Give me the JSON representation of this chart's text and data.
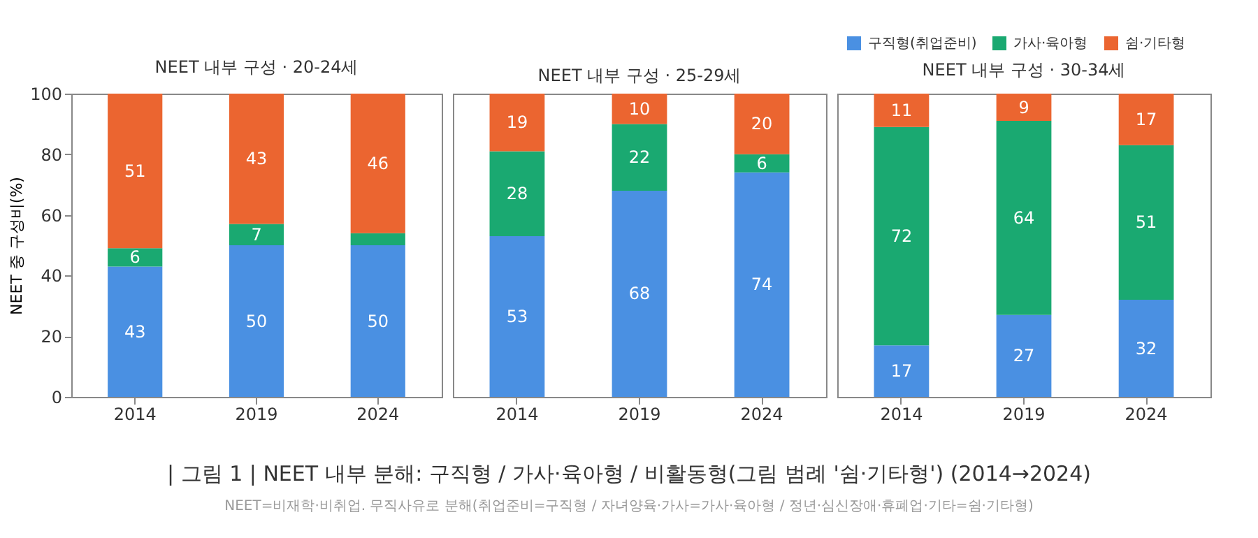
{
  "chart_data": [
    {
      "type": "bar",
      "stacked": true,
      "title": "NEET 내부 구성 · 20-24세",
      "ylabel": "NEET 중 구성비(%)",
      "categories": [
        "2014",
        "2019",
        "2024"
      ],
      "ylim": [
        0,
        100
      ],
      "yticks": [
        0,
        20,
        40,
        60,
        80,
        100
      ],
      "series": [
        {
          "color": "#4a90e2",
          "values": [
            43,
            50,
            50
          ],
          "value_labels": [
            "43",
            "50",
            "50"
          ]
        },
        {
          "color": "#1aa971",
          "values": [
            6,
            7,
            4
          ],
          "value_labels": [
            "6",
            "7",
            null
          ]
        },
        {
          "color": "#eb6530",
          "values": [
            51,
            43,
            46
          ],
          "value_labels": [
            "51",
            "43",
            "46"
          ]
        }
      ],
      "annotations": [
        "| 그림 1 |  NEET 내부 분해: 구직형 / 가사·육아형 / 비활동형(그림 범례 '쉼·기타형') (2014→2024)",
        "NEET=비재학·비취업. 무직사유로 분해(취업준비=구직형 / 자녀양육·가사=가사·육아형 / 정년·심신장애·휴폐업·기타=쉼·기타형)"
      ]
    },
    {
      "type": "bar",
      "stacked": true,
      "title": "NEET 내부 구성 · 25-29세",
      "categories": [
        "2014",
        "2019",
        "2024"
      ],
      "ylim": [
        0,
        100
      ],
      "tick_labels": "x",
      "series": [
        {
          "color": "#4a90e2",
          "values": [
            53,
            68,
            74
          ],
          "value_labels": [
            "53",
            "68",
            "74"
          ]
        },
        {
          "color": "#1aa971",
          "values": [
            28,
            22,
            6
          ],
          "value_labels": [
            "28",
            "22",
            "6"
          ]
        },
        {
          "color": "#eb6530",
          "values": [
            19,
            10,
            20
          ],
          "value_labels": [
            "19",
            "10",
            "20"
          ]
        }
      ]
    },
    {
      "type": "bar",
      "stacked": true,
      "title": "NEET 내부 구성 · 30-34세",
      "categories": [
        "2014",
        "2019",
        "2024"
      ],
      "ylim": [
        0,
        100
      ],
      "tick_labels": "x",
      "legend": "top right",
      "series": [
        {
          "name": "구직형(취업준비)",
          "color": "#4a90e2",
          "values": [
            17,
            27,
            32
          ],
          "value_labels": [
            "17",
            "27",
            "32"
          ]
        },
        {
          "name": "가사·육아형",
          "color": "#1aa971",
          "values": [
            72,
            64,
            51
          ],
          "value_labels": [
            "72",
            "64",
            "51"
          ]
        },
        {
          "name": "쉼·기타형",
          "color": "#eb6530",
          "values": [
            11,
            9,
            17
          ],
          "value_labels": [
            "11",
            "9",
            "17"
          ]
        }
      ]
    }
  ]
}
